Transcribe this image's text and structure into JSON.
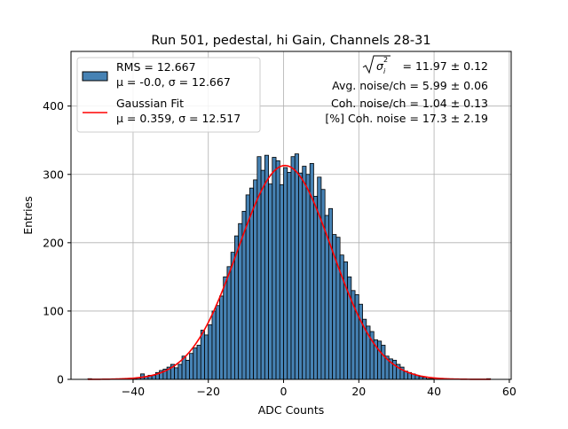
{
  "chart_data": {
    "type": "bar",
    "title": "Run 501, pedestal, hi Gain, Channels 28-31",
    "xlabel": "ADC Counts",
    "ylabel": "Entries",
    "xlim": [
      -56.5,
      60.5
    ],
    "ylim": [
      0,
      480
    ],
    "xticks": [
      -40,
      -20,
      0,
      20,
      40,
      60
    ],
    "yticks": [
      0,
      100,
      200,
      300,
      400
    ],
    "grid": true,
    "legend_position": "upper-left",
    "bar_color": "#4682b4",
    "fit_color": "#ff0000",
    "histogram": {
      "name": "RMS = 12.667",
      "name_line2": "μ = -0.0, σ = 12.667",
      "bin_start": -52,
      "bin_width": 1,
      "counts": [
        1,
        0,
        0,
        0,
        0,
        0,
        0,
        0,
        0,
        0,
        0,
        1,
        1,
        2,
        8,
        4,
        6,
        6,
        10,
        13,
        15,
        18,
        22,
        17,
        22,
        34,
        28,
        38,
        46,
        50,
        72,
        65,
        80,
        100,
        108,
        122,
        150,
        165,
        186,
        210,
        228,
        246,
        270,
        280,
        292,
        326,
        306,
        328,
        286,
        325,
        320,
        285,
        310,
        303,
        326,
        330,
        302,
        312,
        300,
        316,
        268,
        296,
        278,
        240,
        250,
        212,
        208,
        182,
        172,
        150,
        130,
        124,
        110,
        88,
        78,
        70,
        58,
        56,
        50,
        34,
        30,
        28,
        22,
        18,
        12,
        10,
        8,
        6,
        4,
        3,
        1,
        1,
        0,
        0,
        0,
        0,
        0,
        0,
        0,
        0,
        0,
        0,
        0,
        0,
        0,
        0,
        1
      ]
    },
    "fit": {
      "name": "Gaussian Fit",
      "name_line2": "μ = 0.359, σ = 12.517",
      "mu": 0.359,
      "sigma": 12.517,
      "amplitude": 313,
      "x_range": [
        -52,
        55
      ]
    },
    "annotations": [
      "= 11.97 ± 0.12",
      "Avg. noise/ch = 5.99 ± 0.06",
      "Coh. noise/ch = 1.04 ± 0.13",
      "[%] Coh. noise = 17.3 ± 2.19"
    ]
  }
}
